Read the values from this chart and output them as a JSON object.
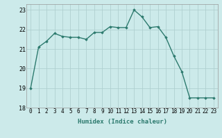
{
  "x": [
    0,
    1,
    2,
    3,
    4,
    5,
    6,
    7,
    8,
    9,
    10,
    11,
    12,
    13,
    14,
    15,
    16,
    17,
    18,
    19,
    20,
    21,
    22,
    23
  ],
  "y": [
    19.0,
    21.1,
    21.4,
    21.8,
    21.65,
    21.6,
    21.6,
    21.5,
    21.85,
    21.85,
    22.15,
    22.1,
    22.1,
    23.0,
    22.65,
    22.1,
    22.15,
    21.6,
    20.65,
    19.85,
    18.5,
    18.5,
    18.5,
    18.5
  ],
  "xlim": [
    -0.5,
    23.5
  ],
  "ylim": [
    18,
    23.3
  ],
  "yticks": [
    18,
    19,
    20,
    21,
    22,
    23
  ],
  "xticks": [
    0,
    1,
    2,
    3,
    4,
    5,
    6,
    7,
    8,
    9,
    10,
    11,
    12,
    13,
    14,
    15,
    16,
    17,
    18,
    19,
    20,
    21,
    22,
    23
  ],
  "xlabel": "Humidex (Indice chaleur)",
  "line_color": "#2d7a6e",
  "marker": "D",
  "marker_size": 1.8,
  "bg_color": "#cceaea",
  "grid_color": "#b0d0d0",
  "line_width": 1.0,
  "tick_fontsize": 5.5,
  "xlabel_fontsize": 6.5
}
